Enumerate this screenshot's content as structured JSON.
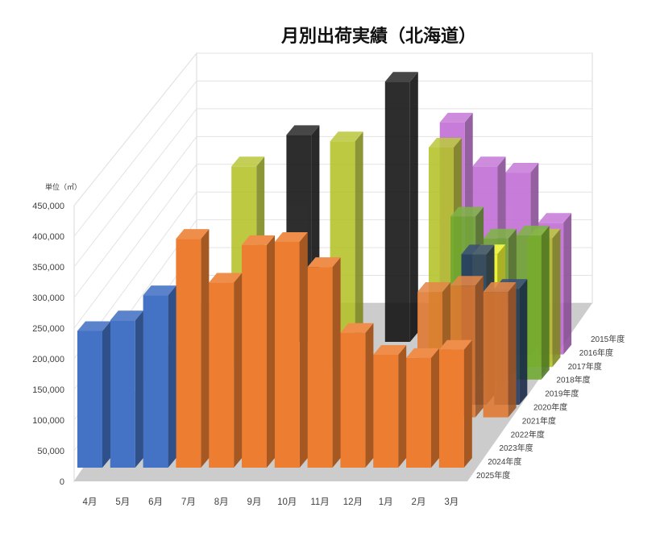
{
  "chart_data": {
    "type": "bar",
    "title": "月別出荷実績（北海道）",
    "unit_label": "単位（㎥）",
    "categories": [
      "4月",
      "5月",
      "6月",
      "7月",
      "8月",
      "9月",
      "10月",
      "11月",
      "12月",
      "1月",
      "2月",
      "3月"
    ],
    "y_ticks": [
      "0",
      "50,000",
      "100,000",
      "150,000",
      "200,000",
      "250,000",
      "300,000",
      "350,000",
      "400,000",
      "450,000"
    ],
    "ylim": [
      0,
      450000
    ],
    "grid": true,
    "series": [
      {
        "name": "2015年度",
        "color": "#111111",
        "values": [
          null,
          null,
          null,
          330000,
          null,
          null,
          415000,
          null,
          null,
          null,
          null,
          null
        ]
      },
      {
        "name": "2016年度",
        "color": "#C06BD4",
        "values": [
          null,
          null,
          null,
          null,
          null,
          null,
          null,
          null,
          370000,
          300000,
          290000,
          210000
        ]
      },
      {
        "name": "2017年度",
        "color": "#B3C227",
        "values": [
          null,
          null,
          320000,
          null,
          null,
          360000,
          null,
          null,
          350000,
          null,
          null,
          205000
        ]
      },
      {
        "name": "2018年度",
        "color": "#6FAA2F",
        "values": [
          null,
          null,
          null,
          null,
          null,
          null,
          null,
          null,
          null,
          260000,
          225000,
          230000
        ]
      },
      {
        "name": "2019年度",
        "color": "#FFFF33",
        "values": [
          null,
          null,
          null,
          null,
          null,
          null,
          null,
          null,
          null,
          null,
          220000,
          null
        ]
      },
      {
        "name": "2020年度",
        "color": "#203864",
        "values": [
          null,
          null,
          null,
          null,
          null,
          null,
          null,
          null,
          null,
          null,
          240000,
          185000
        ]
      },
      {
        "name": "2021年度",
        "color": "#E07830",
        "values": [
          null,
          null,
          null,
          null,
          null,
          null,
          null,
          null,
          null,
          200000,
          210000,
          200000
        ]
      },
      {
        "name": "2022年度",
        "color": "#203864",
        "values": [
          null,
          null,
          null,
          null,
          null,
          null,
          null,
          null,
          null,
          null,
          null,
          null
        ]
      },
      {
        "name": "2023年度",
        "color": "#4472C4",
        "values": [
          null,
          null,
          null,
          null,
          null,
          null,
          null,
          null,
          null,
          null,
          null,
          null
        ]
      },
      {
        "name": "2024年度",
        "color": "#1AB2C8",
        "values": [
          null,
          null,
          null,
          null,
          null,
          null,
          null,
          null,
          null,
          null,
          null,
          null
        ]
      },
      {
        "name": "2025年度",
        "color": "#ED7D31",
        "values": [
          218000,
          235000,
          275000,
          null,
          null,
          null,
          null,
          null,
          null,
          null,
          null,
          null
        ]
      }
    ],
    "front_series": {
      "name": "2025年度",
      "colors_by_category": [
        "#4472C4",
        "#4472C4",
        "#4472C4",
        "#ED7D31",
        "#ED7D31",
        "#ED7D31",
        "#ED7D31",
        "#ED7D31",
        "#ED7D31",
        "#ED7D31",
        "#ED7D31",
        "#ED7D31"
      ],
      "values": [
        218000,
        235000,
        275000,
        365000,
        295000,
        355000,
        360000,
        320000,
        215000,
        180000,
        175000,
        188000
      ]
    }
  }
}
